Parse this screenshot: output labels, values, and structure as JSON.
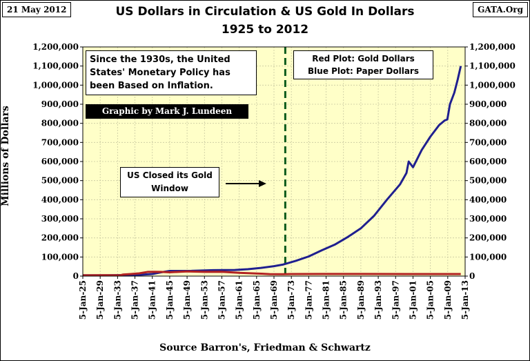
{
  "header": {
    "date": "21 May 2012",
    "site": "GATA.Org",
    "title_line1": "US Dollars in Circulation & US Gold In Dollars",
    "title_line2": "1925 to 2012"
  },
  "annotations": {
    "monetary_policy": "Since the 1930s, the United States' Monetary Policy has been Based on Inflation.",
    "credit": "Graphic by Mark J. Lundeen",
    "legend_red": "Red Plot: Gold Dollars",
    "legend_blue": "Blue Plot: Paper Dollars",
    "gold_window": "US Closed its Gold Window"
  },
  "source": "Source Barron's,  Friedman & Schwartz",
  "colors": {
    "plot_bg": "#ffffc8",
    "paper": "#1f1f8f",
    "gold": "#b22222",
    "divider": "#0b5a1c"
  },
  "chart_data": {
    "type": "line",
    "title": "US Dollars in Circulation & US Gold In Dollars 1925 to 2012",
    "ylabel": "Millions of Dollars",
    "xlabel": "Source Barron's,  Friedman & Schwartz",
    "ylim": [
      0,
      1200000
    ],
    "xlim": [
      1925,
      2013
    ],
    "y_ticks": [
      0,
      100000,
      200000,
      300000,
      400000,
      500000,
      600000,
      700000,
      800000,
      900000,
      1000000,
      1100000,
      1200000
    ],
    "y_tick_labels": [
      "0",
      "100,000",
      "200,000",
      "300,000",
      "400,000",
      "500,000",
      "600,000",
      "700,000",
      "800,000",
      "900,000",
      "1,000,000",
      "1,100,000",
      "1,200,000"
    ],
    "x_ticks": [
      1925,
      1929,
      1933,
      1937,
      1941,
      1945,
      1949,
      1953,
      1957,
      1961,
      1965,
      1969,
      1973,
      1977,
      1981,
      1985,
      1989,
      1993,
      1997,
      2001,
      2005,
      2009,
      2013
    ],
    "x_tick_labels": [
      "5-Jan-25",
      "5-Jan-29",
      "5-Jan-33",
      "5-Jan-37",
      "5-Jan-41",
      "5-Jan-45",
      "5-Jan-49",
      "5-Jan-53",
      "5-Jan-57",
      "5-Jan-61",
      "5-Jan-65",
      "5-Jan-69",
      "5-Jan-73",
      "5-Jan-77",
      "5-Jan-81",
      "5-Jan-85",
      "5-Jan-89",
      "5-Jan-93",
      "5-Jan-97",
      "5-Jan-01",
      "5-Jan-05",
      "5-Jan-09",
      "5-Jan-13"
    ],
    "vertical_marker": {
      "x": 1971.6,
      "label": "US Closed its Gold Window"
    },
    "grid": true,
    "series": [
      {
        "name": "Paper Dollars",
        "color": "#1f1f8f",
        "x": [
          1925,
          1930,
          1934,
          1938,
          1941,
          1943,
          1945,
          1950,
          1955,
          1960,
          1963,
          1966,
          1969,
          1971,
          1974,
          1977,
          1980,
          1983,
          1986,
          1989,
          1992,
          1995,
          1998,
          1999.5,
          2000,
          2001,
          2003,
          2005,
          2007,
          2008.3,
          2008.9,
          2009.5,
          2010.5,
          2011.3,
          2012
        ],
        "values": [
          4800,
          4500,
          5500,
          7000,
          11000,
          20000,
          27000,
          27500,
          31000,
          32000,
          36000,
          43000,
          52000,
          60000,
          80000,
          103000,
          135000,
          165000,
          205000,
          250000,
          315000,
          400000,
          480000,
          540000,
          600000,
          570000,
          660000,
          730000,
          790000,
          815000,
          820000,
          900000,
          960000,
          1030000,
          1100000
        ]
      },
      {
        "name": "Gold Dollars",
        "color": "#b22222",
        "x": [
          1925,
          1930,
          1933.5,
          1934.2,
          1936,
          1938,
          1940,
          1941.5,
          1943,
          1945,
          1949,
          1953,
          1957,
          1961,
          1965,
          1968,
          1971,
          1973,
          1980,
          1990,
          2000,
          2012
        ],
        "values": [
          4000,
          4300,
          4000,
          7800,
          11000,
          14500,
          22000,
          22700,
          22000,
          20000,
          24600,
          22000,
          22800,
          17000,
          13800,
          10400,
          10200,
          11000,
          11100,
          11100,
          11000,
          11000
        ]
      }
    ]
  }
}
